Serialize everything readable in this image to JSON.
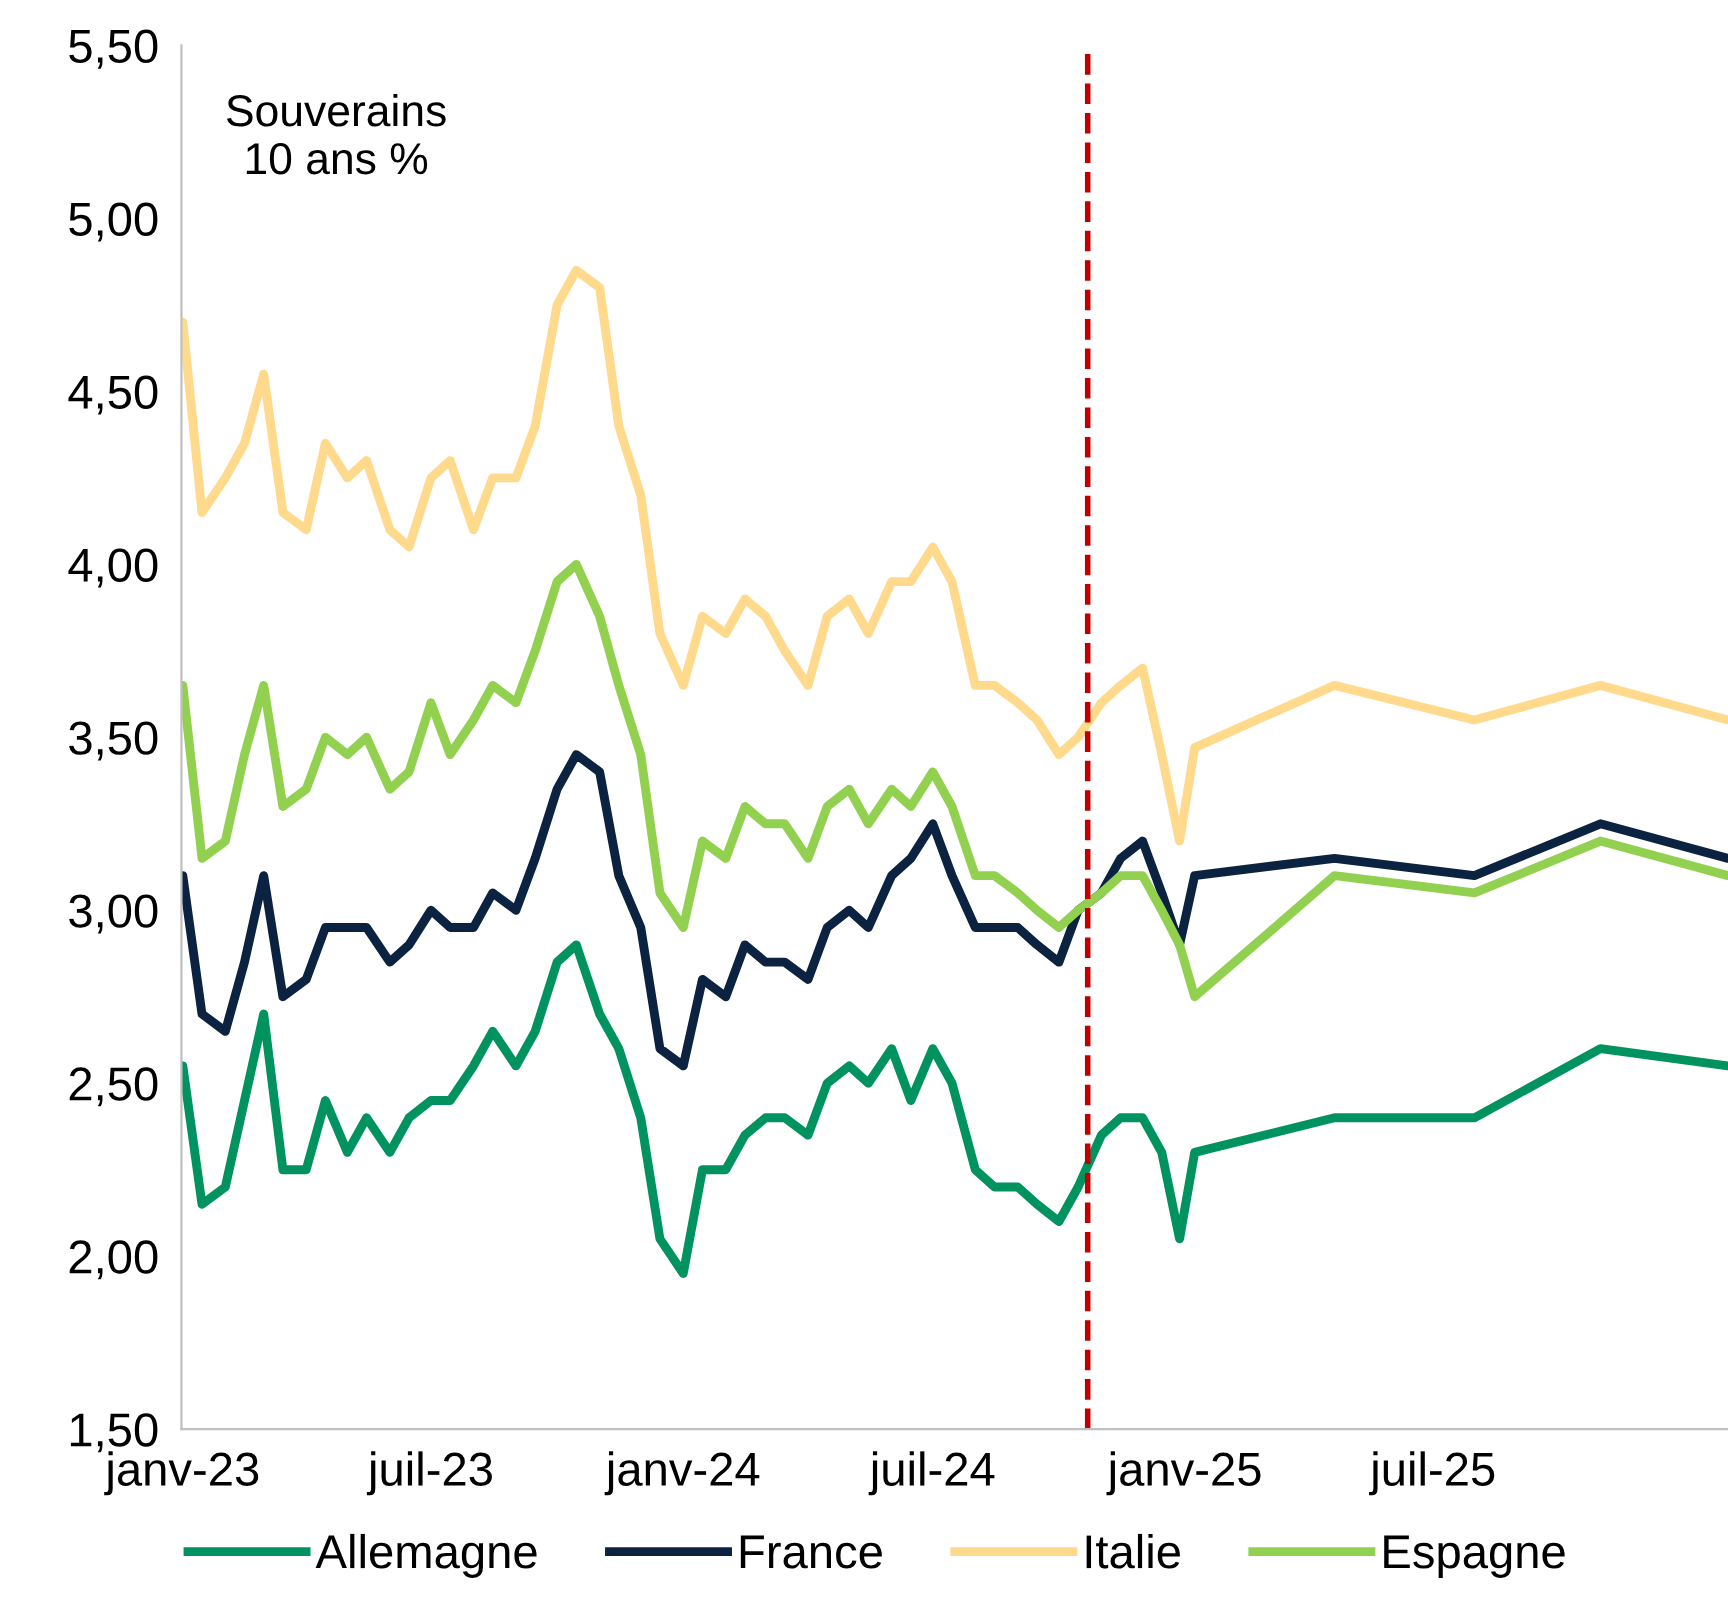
{
  "chart_data": {
    "type": "line",
    "x": [
      "2023-01-01",
      "2023-01-15",
      "2023-02-01",
      "2023-02-15",
      "2023-03-01",
      "2023-03-15",
      "2023-04-01",
      "2023-04-15",
      "2023-05-01",
      "2023-05-15",
      "2023-06-01",
      "2023-06-15",
      "2023-07-01",
      "2023-07-15",
      "2023-08-01",
      "2023-08-15",
      "2023-09-01",
      "2023-09-15",
      "2023-10-01",
      "2023-10-15",
      "2023-11-01",
      "2023-11-15",
      "2023-12-01",
      "2023-12-15",
      "2024-01-01",
      "2024-01-15",
      "2024-02-01",
      "2024-02-15",
      "2024-03-01",
      "2024-03-15",
      "2024-04-01",
      "2024-04-15",
      "2024-05-01",
      "2024-05-15",
      "2024-06-01",
      "2024-06-15",
      "2024-07-01",
      "2024-07-15",
      "2024-08-01",
      "2024-08-15",
      "2024-09-01",
      "2024-09-15",
      "2024-10-01",
      "2024-10-15",
      "2024-11-01",
      "2024-11-15",
      "2024-12-01",
      "2024-12-15",
      "2024-12-28",
      "2025-01-08",
      "2025-04-20",
      "2025-07-31",
      "2025-10-31",
      "2026-02-01"
    ],
    "series": [
      {
        "name": "Allemagne",
        "color": "#00935f",
        "values": [
          2.55,
          2.15,
          2.2,
          2.45,
          2.7,
          2.25,
          2.25,
          2.45,
          2.3,
          2.4,
          2.3,
          2.4,
          2.45,
          2.45,
          2.55,
          2.65,
          2.55,
          2.65,
          2.85,
          2.9,
          2.7,
          2.6,
          2.4,
          2.05,
          1.95,
          2.25,
          2.25,
          2.35,
          2.4,
          2.4,
          2.35,
          2.5,
          2.55,
          2.5,
          2.6,
          2.45,
          2.6,
          2.5,
          2.25,
          2.2,
          2.2,
          2.15,
          2.1,
          2.2,
          2.35,
          2.4,
          2.4,
          2.3,
          2.05,
          2.3,
          2.4,
          2.4,
          2.6,
          2.55
        ]
      },
      {
        "name": "France",
        "color": "#0b2341",
        "values": [
          3.1,
          2.7,
          2.65,
          2.85,
          3.1,
          2.75,
          2.8,
          2.95,
          2.95,
          2.95,
          2.85,
          2.9,
          3.0,
          2.95,
          2.95,
          3.05,
          3.0,
          3.15,
          3.35,
          3.45,
          3.4,
          3.1,
          2.95,
          2.6,
          2.55,
          2.8,
          2.75,
          2.9,
          2.85,
          2.85,
          2.8,
          2.95,
          3.0,
          2.95,
          3.1,
          3.15,
          3.25,
          3.1,
          2.95,
          2.95,
          2.95,
          2.9,
          2.85,
          3.0,
          3.05,
          3.15,
          3.2,
          3.05,
          2.9,
          3.1,
          3.15,
          3.1,
          3.25,
          3.15
        ]
      },
      {
        "name": "Italie",
        "color": "#ffd98c",
        "values": [
          4.7,
          4.15,
          4.25,
          4.35,
          4.55,
          4.15,
          4.1,
          4.35,
          4.25,
          4.3,
          4.1,
          4.05,
          4.25,
          4.3,
          4.1,
          4.25,
          4.25,
          4.4,
          4.75,
          4.85,
          4.8,
          4.4,
          4.2,
          3.8,
          3.65,
          3.85,
          3.8,
          3.9,
          3.85,
          3.75,
          3.65,
          3.85,
          3.9,
          3.8,
          3.95,
          3.95,
          4.05,
          3.95,
          3.65,
          3.65,
          3.6,
          3.55,
          3.45,
          3.5,
          3.6,
          3.65,
          3.7,
          3.45,
          3.2,
          3.47,
          3.65,
          3.55,
          3.65,
          3.55
        ]
      },
      {
        "name": "Espagne",
        "color": "#92d050",
        "values": [
          3.65,
          3.15,
          3.2,
          3.45,
          3.65,
          3.3,
          3.35,
          3.5,
          3.45,
          3.5,
          3.35,
          3.4,
          3.6,
          3.45,
          3.55,
          3.65,
          3.6,
          3.75,
          3.95,
          4.0,
          3.85,
          3.65,
          3.45,
          3.05,
          2.95,
          3.2,
          3.15,
          3.3,
          3.25,
          3.25,
          3.15,
          3.3,
          3.35,
          3.25,
          3.35,
          3.3,
          3.4,
          3.3,
          3.1,
          3.1,
          3.05,
          3.0,
          2.95,
          3.0,
          3.05,
          3.1,
          3.1,
          3.0,
          2.9,
          2.75,
          3.1,
          3.05,
          3.2,
          3.1
        ]
      }
    ],
    "xlim": [
      "2022-12-31",
      "2026-02-01"
    ],
    "xticks": [
      {
        "value": "2023-01-01",
        "label": "janv-23"
      },
      {
        "value": "2023-07-01",
        "label": "juil-23"
      },
      {
        "value": "2024-01-01",
        "label": "janv-24"
      },
      {
        "value": "2024-07-01",
        "label": "juil-24"
      },
      {
        "value": "2025-01-01",
        "label": "janv-25"
      },
      {
        "value": "2025-07-01",
        "label": "juil-25"
      }
    ],
    "ylim": [
      1.5,
      5.5
    ],
    "yticks": [
      {
        "value": 1.5,
        "label": "1,50"
      },
      {
        "value": 2.0,
        "label": "2,00"
      },
      {
        "value": 2.5,
        "label": "2,50"
      },
      {
        "value": 3.0,
        "label": "3,00"
      },
      {
        "value": 3.5,
        "label": "3,50"
      },
      {
        "value": 4.0,
        "label": "4,00"
      },
      {
        "value": 4.5,
        "label": "4,50"
      },
      {
        "value": 5.0,
        "label": "5,00"
      },
      {
        "value": 5.5,
        "label": "5,50"
      }
    ],
    "ref_lines": [
      {
        "axis": "x",
        "value": "2024-10-22",
        "color": "#c00000",
        "line_style": "dashed"
      }
    ],
    "annotations": [
      "Souverains\n10 ans %"
    ],
    "grid": false,
    "legend": "bottom",
    "marker": "none",
    "line_style": "solid"
  }
}
